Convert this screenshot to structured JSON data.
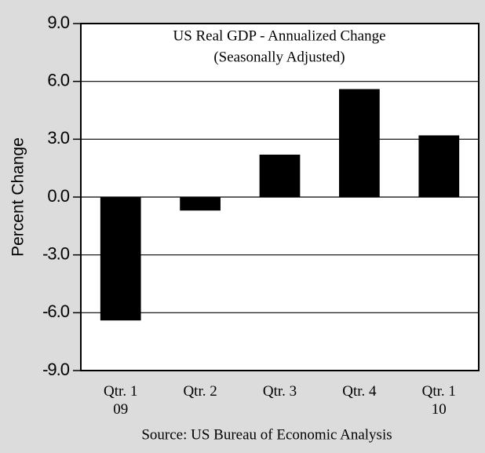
{
  "chart_data": {
    "type": "bar",
    "title": "US Real GDP - Annualized Change",
    "subtitle": "(Seasonally Adjusted)",
    "y_label": "Percent Change",
    "source": "Source: US Bureau of Economic Analysis",
    "categories": [
      "Qtr. 1\n09",
      "Qtr. 2",
      "Qtr. 3",
      "Qtr. 4",
      "Qtr. 1\n10"
    ],
    "values": [
      -6.4,
      -0.7,
      2.2,
      5.6,
      3.2
    ],
    "color": "#000000",
    "ylim": [
      -9,
      9
    ],
    "yticks": [
      {
        "value": 9,
        "label": "9.0"
      },
      {
        "value": 6,
        "label": "6.0"
      },
      {
        "value": 3,
        "label": "3.0"
      },
      {
        "value": 0,
        "label": "0.0"
      },
      {
        "value": -3,
        "label": "-3.0"
      },
      {
        "value": -6,
        "label": "-6.0"
      },
      {
        "value": -9,
        "label": "-9.0"
      }
    ],
    "grid": true
  }
}
